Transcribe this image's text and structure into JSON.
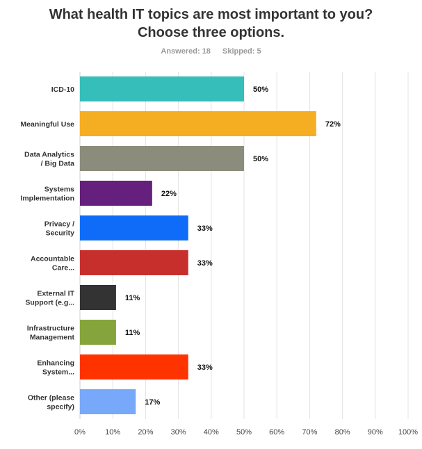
{
  "title": "What health IT topics are most important to you? Choose three options.",
  "answered": "Answered: 18",
  "skipped": "Skipped: 5",
  "chart_data": {
    "type": "bar",
    "orientation": "horizontal",
    "categories": [
      [
        "ICD-10"
      ],
      [
        "Meaningful Use"
      ],
      [
        "Data Analytics",
        "/ Big Data"
      ],
      [
        "Systems",
        "Implementation"
      ],
      [
        "Privacy /",
        "Security"
      ],
      [
        "Accountable",
        "Care..."
      ],
      [
        "External IT",
        "Support (e.g..."
      ],
      [
        "Infrastructure",
        "Management"
      ],
      [
        "Enhancing",
        "System..."
      ],
      [
        "Other (please",
        "specify)"
      ]
    ],
    "values": [
      50,
      72,
      50,
      22,
      33,
      33,
      11,
      11,
      33,
      17
    ],
    "value_labels": [
      "50%",
      "72%",
      "50%",
      "22%",
      "33%",
      "33%",
      "11%",
      "11%",
      "33%",
      "17%"
    ],
    "colors": [
      "#35beba",
      "#f5ad22",
      "#8c8c7c",
      "#651f7c",
      "#0f6cf9",
      "#c72f2d",
      "#333333",
      "#85a43b",
      "#ff3300",
      "#77a8f9"
    ],
    "xticks": [
      "0%",
      "10%",
      "20%",
      "30%",
      "40%",
      "50%",
      "60%",
      "70%",
      "80%",
      "90%",
      "100%"
    ],
    "xlim": [
      0,
      100
    ],
    "grid": true
  }
}
